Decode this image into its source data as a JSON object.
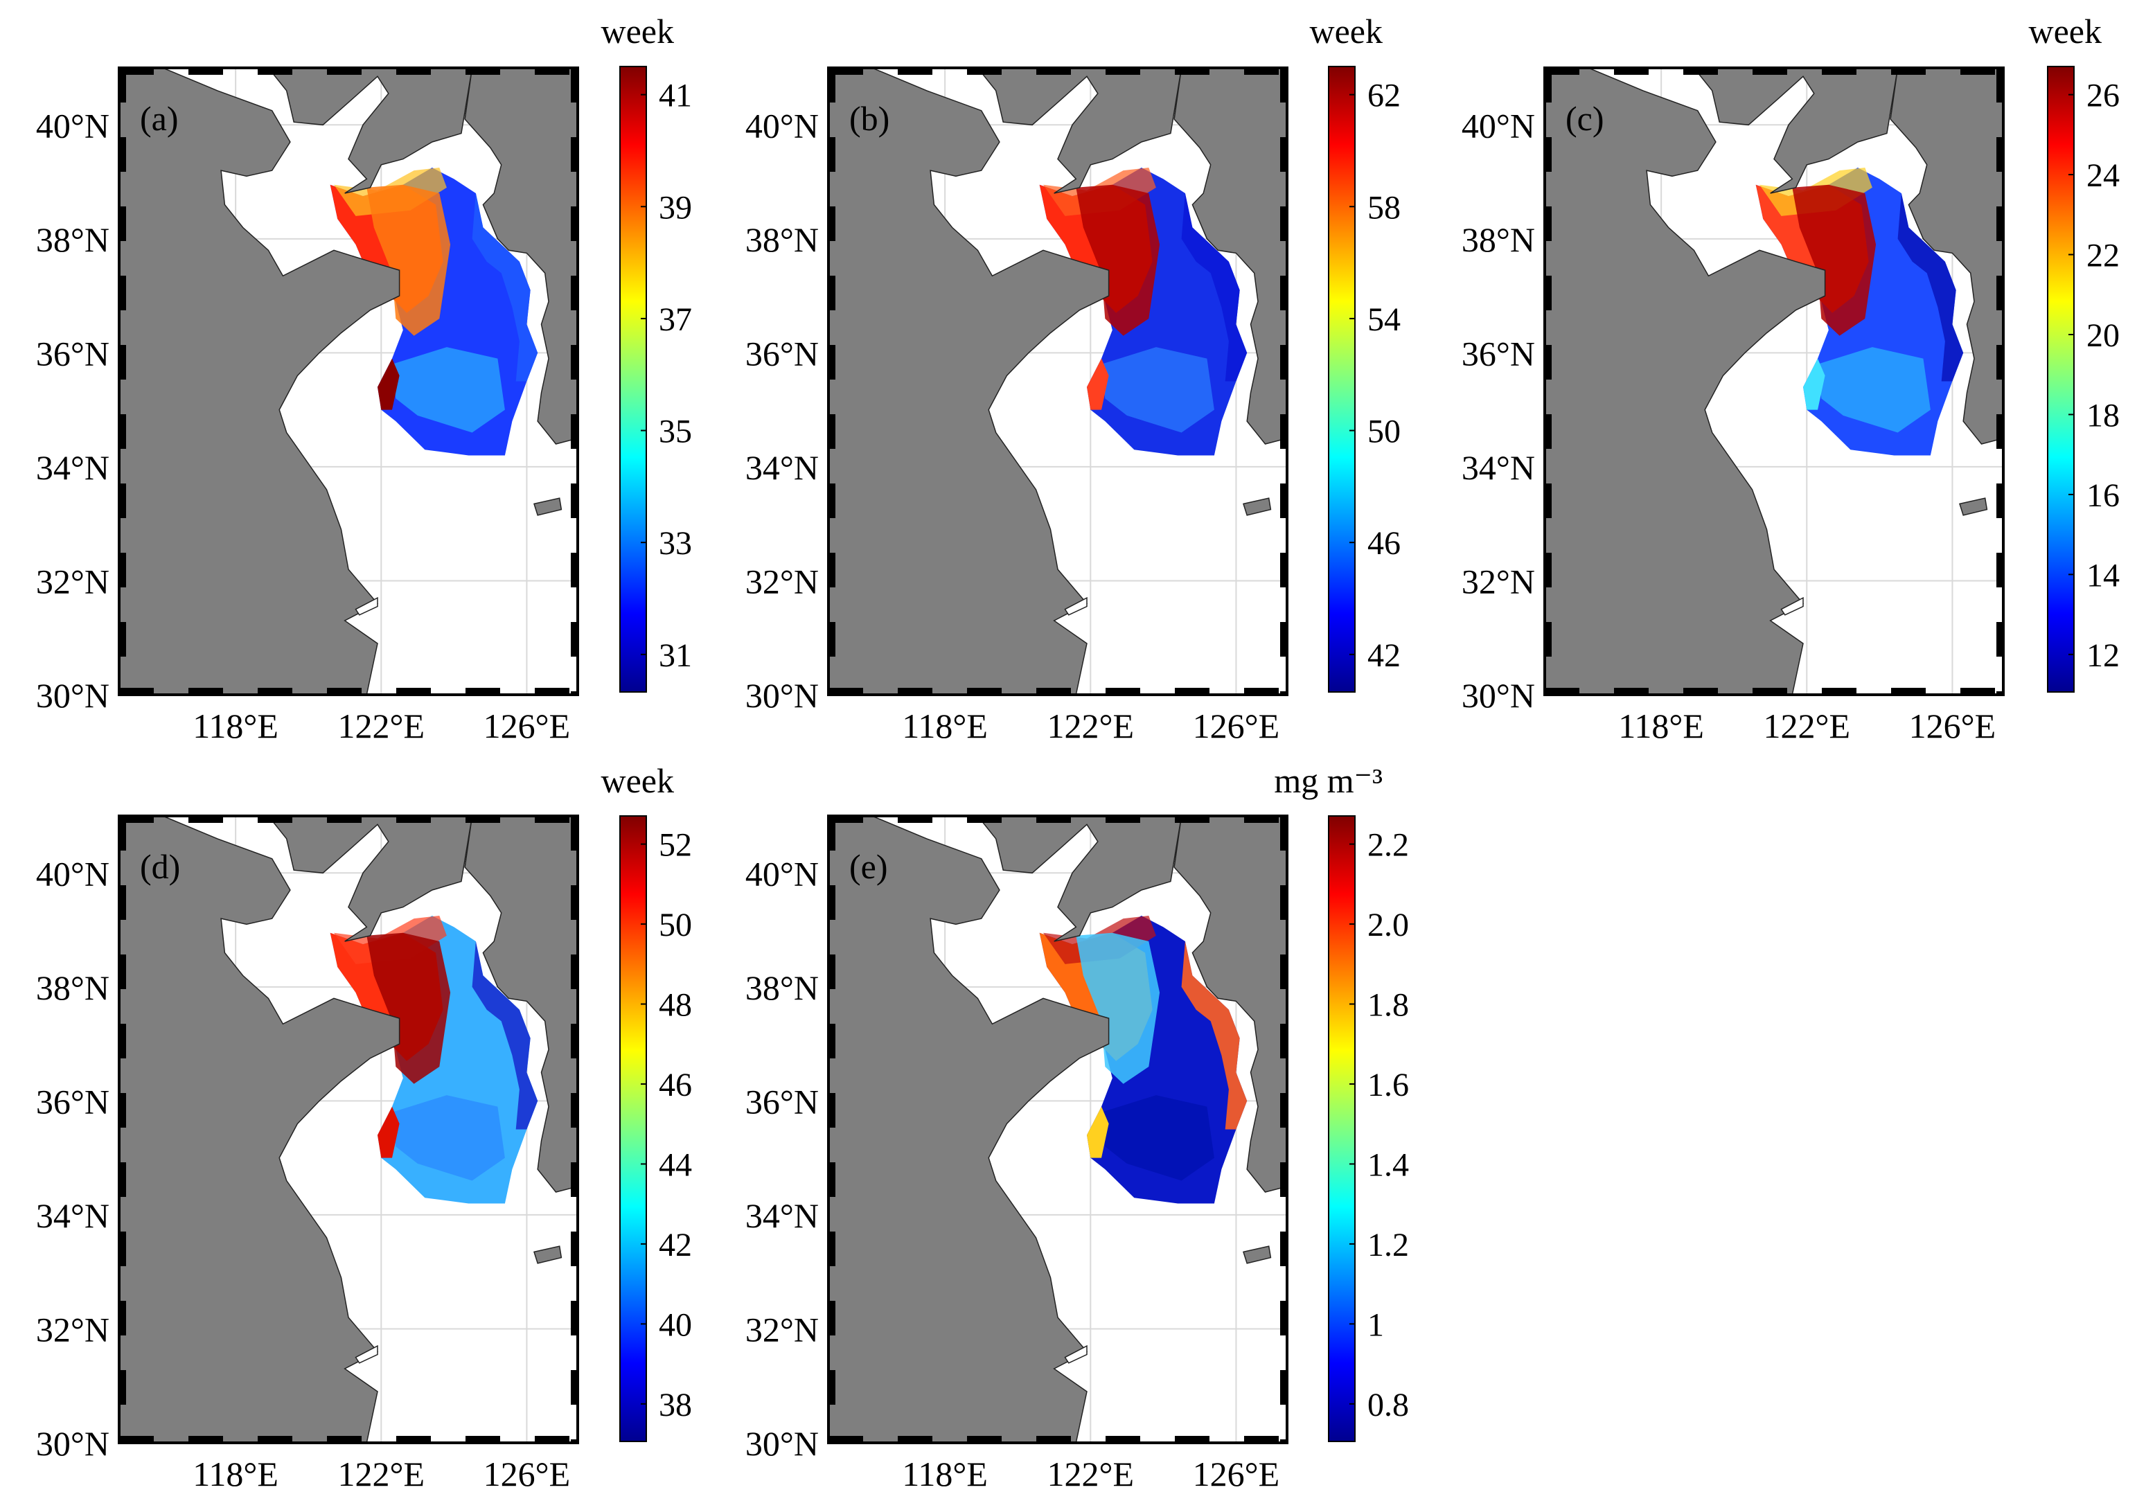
{
  "lat_ticks": [
    "30°N",
    "32°N",
    "34°N",
    "36°N",
    "38°N",
    "40°N"
  ],
  "lon_ticks": [
    "118°E",
    "122°E",
    "126°E"
  ],
  "colors": {
    "land": "#7f7f7f",
    "sea_background": "#ffffff",
    "grid": "#d9d9d9",
    "frame": "#000000",
    "colormap": [
      "#00008f",
      "#0000ff",
      "#0080ff",
      "#00ffff",
      "#80ff80",
      "#ffff00",
      "#ff8000",
      "#ff0000",
      "#800000"
    ]
  },
  "panels": [
    {
      "label": "(a)",
      "unit": "week",
      "cbar_ticks": [
        "31",
        "33",
        "35",
        "37",
        "39",
        "41"
      ],
      "pattern": "a"
    },
    {
      "label": "(b)",
      "unit": "week",
      "cbar_ticks": [
        "42",
        "46",
        "50",
        "54",
        "58",
        "62"
      ],
      "pattern": "b"
    },
    {
      "label": "(c)",
      "unit": "week",
      "cbar_ticks": [
        "12",
        "14",
        "16",
        "18",
        "20",
        "22",
        "24",
        "26"
      ],
      "pattern": "c"
    },
    {
      "label": "(d)",
      "unit": "week",
      "cbar_ticks": [
        "38",
        "40",
        "42",
        "44",
        "46",
        "48",
        "50",
        "52"
      ],
      "pattern": "d"
    },
    {
      "label": "(e)",
      "unit": "mg m⁻³",
      "cbar_ticks": [
        "0.8",
        "1",
        "1.2",
        "1.4",
        "1.6",
        "1.8",
        "2.0",
        "2.2"
      ],
      "pattern": "e"
    }
  ]
}
